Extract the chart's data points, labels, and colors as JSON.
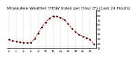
{
  "title": "Milwaukee Weather THSW Index per Hour (F) (Last 24 Hours)",
  "hours": [
    0,
    1,
    2,
    3,
    4,
    5,
    6,
    7,
    8,
    9,
    10,
    11,
    12,
    13,
    14,
    15,
    16,
    17,
    18,
    19,
    20,
    21,
    22,
    23
  ],
  "values": [
    28,
    26,
    24,
    23,
    22,
    21,
    22,
    30,
    42,
    55,
    65,
    73,
    78,
    77,
    75,
    70,
    62,
    52,
    45,
    38,
    35,
    32,
    28,
    18
  ],
  "line_color": "#ff0000",
  "marker_color": "#000000",
  "bg_color": "#ffffff",
  "plot_bg": "#ffffff",
  "grid_color": "#aaaaaa",
  "ylim": [
    10,
    90
  ],
  "yticks": [
    10,
    20,
    30,
    40,
    50,
    60,
    70,
    80,
    90
  ],
  "title_fontsize": 4.2,
  "tick_fontsize": 3.2,
  "line_width": 0.7,
  "marker_size": 1.4
}
